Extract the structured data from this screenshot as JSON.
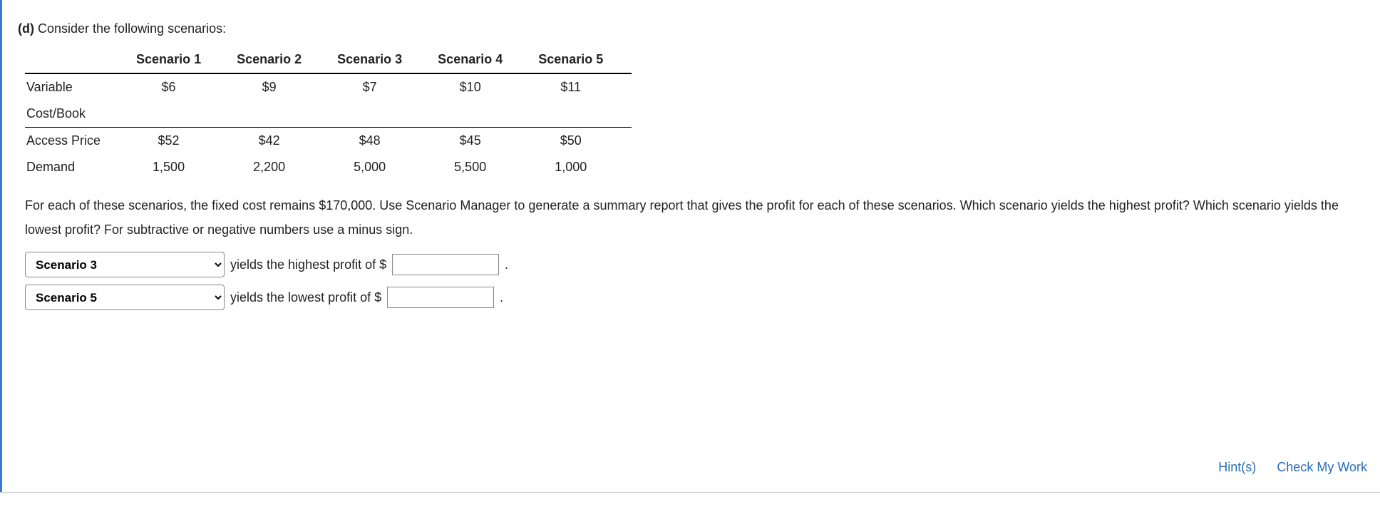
{
  "part_label": "(d)",
  "prompt": "Consider the following scenarios:",
  "table": {
    "columns": [
      "",
      "Scenario 1",
      "Scenario 2",
      "Scenario 3",
      "Scenario 4",
      "Scenario 5"
    ],
    "rows": [
      {
        "label_lines": [
          "Variable",
          "Cost/Book"
        ],
        "values": [
          "$6",
          "$9",
          "$7",
          "$10",
          "$11"
        ],
        "sep_after": true
      },
      {
        "label_lines": [
          "Access Price"
        ],
        "values": [
          "$52",
          "$42",
          "$48",
          "$45",
          "$50"
        ],
        "sep_after": false
      },
      {
        "label_lines": [
          "Demand"
        ],
        "values": [
          "1,500",
          "2,200",
          "5,000",
          "5,500",
          "1,000"
        ],
        "sep_after": false
      }
    ]
  },
  "paragraph": "For each of these scenarios, the fixed cost remains $170,000. Use Scenario Manager to generate a summary report that gives the profit for each of these scenarios. Which scenario yields the highest profit? Which scenario yields the lowest profit? For subtractive or negative numbers use a minus sign.",
  "answers": {
    "scenario_options": [
      "Scenario 1",
      "Scenario 2",
      "Scenario 3",
      "Scenario 4",
      "Scenario 5"
    ],
    "highest": {
      "selected": "Scenario 3",
      "label": "yields the highest profit of $",
      "value": "",
      "period": "."
    },
    "lowest": {
      "selected": "Scenario 5",
      "label": "yields the lowest profit of $",
      "value": "",
      "period": "."
    }
  },
  "links": {
    "hints": "Hint(s)",
    "check": "Check My Work"
  }
}
